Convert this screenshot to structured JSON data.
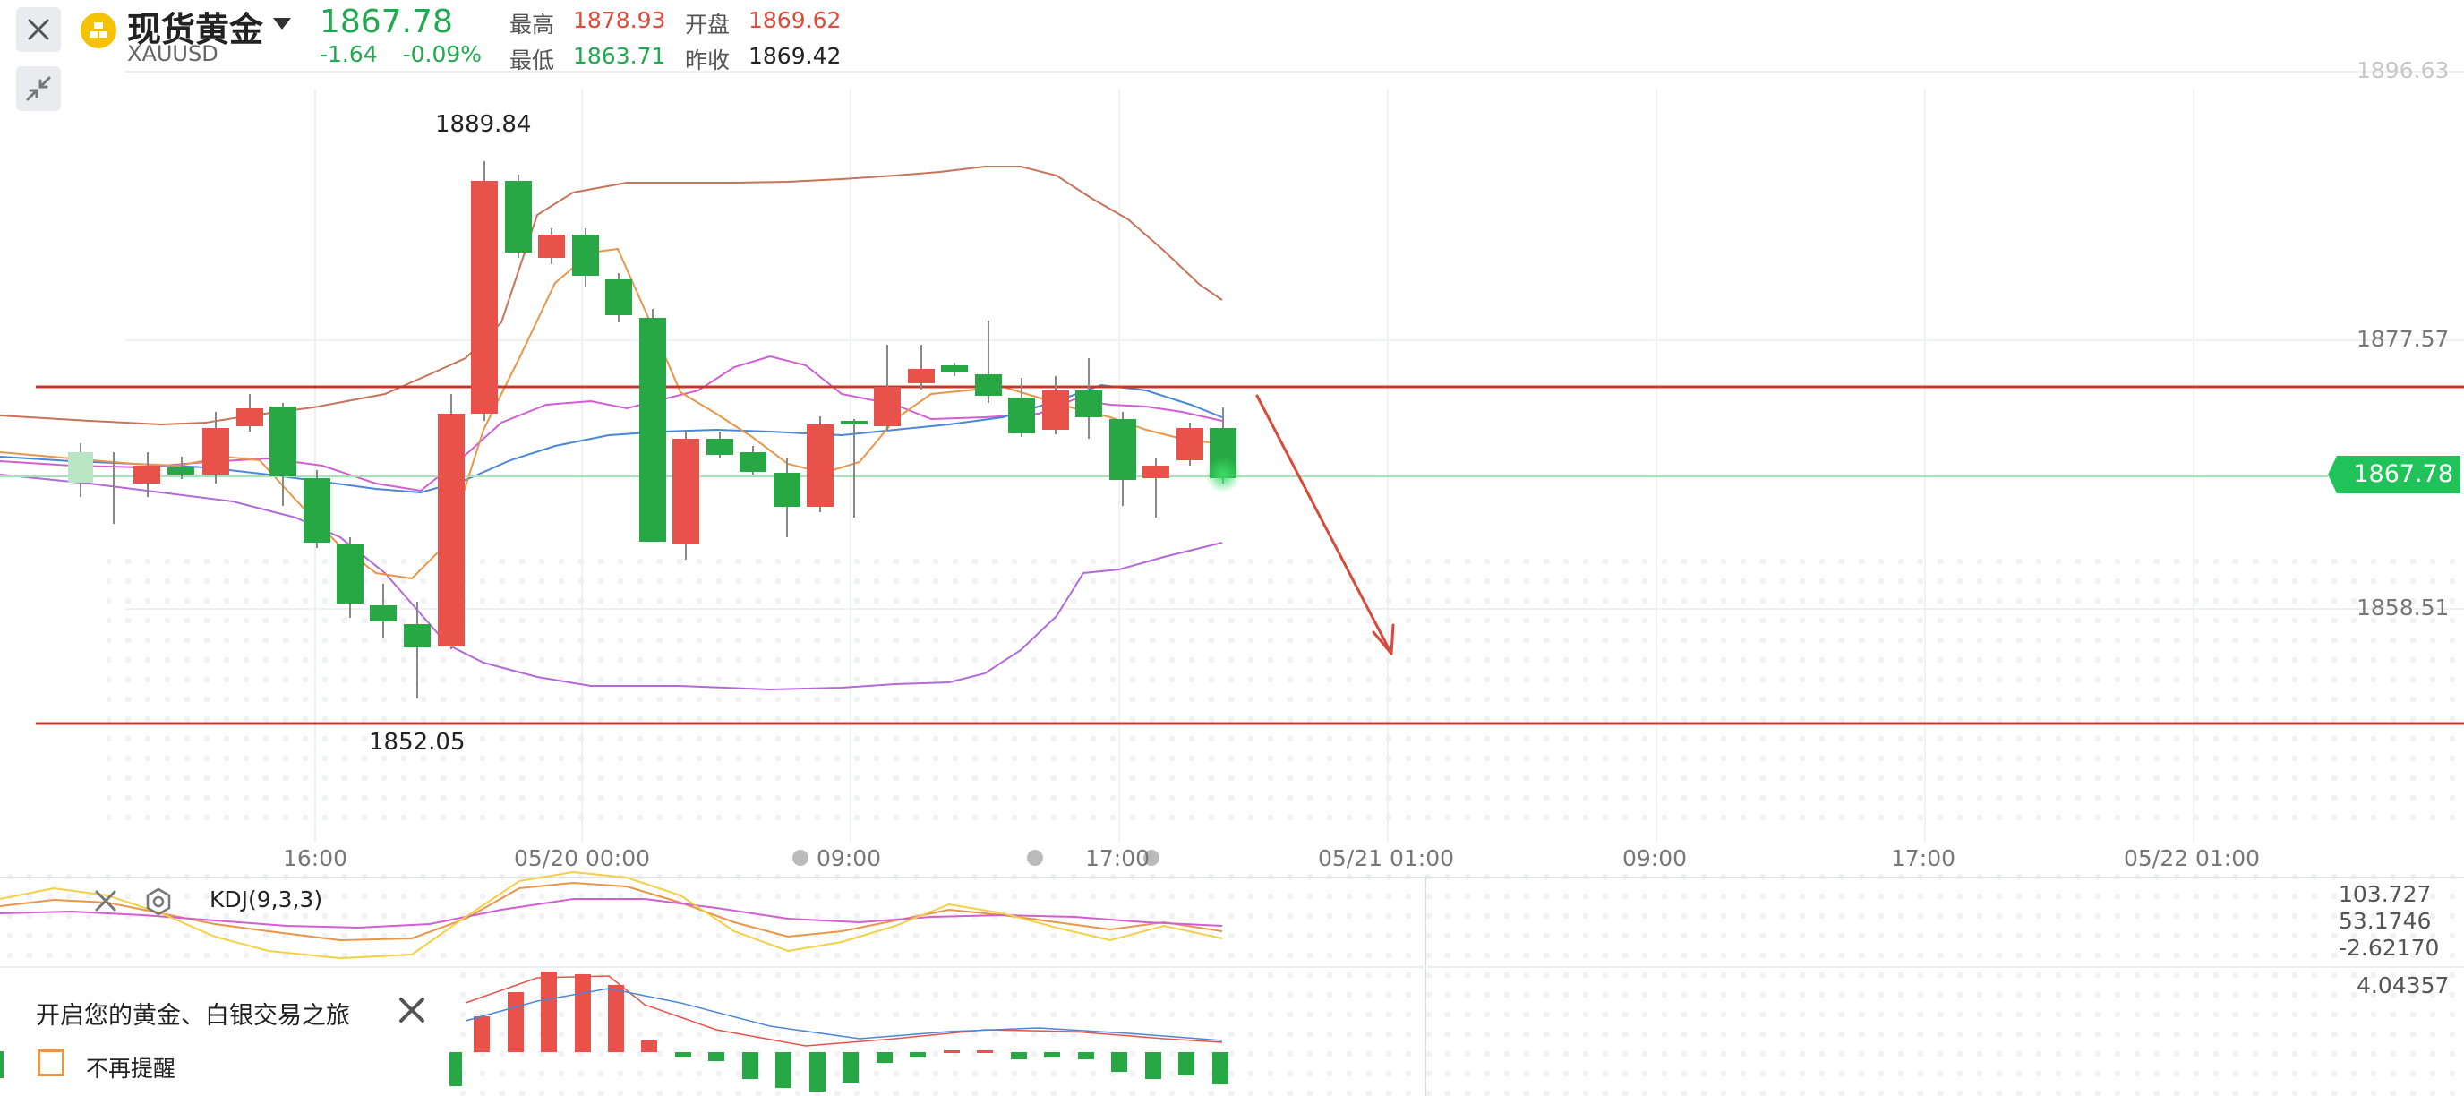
{
  "header": {
    "instrument_name": "现货黄金",
    "symbol": "XAUUSD",
    "last_price": "1867.78",
    "change": "-1.64",
    "change_pct": "-0.09%",
    "stats": {
      "high_label": "最高",
      "high_value": "1878.93",
      "open_label": "开盘",
      "open_value": "1869.62",
      "low_label": "最低",
      "low_value": "1863.71",
      "prev_close_label": "昨收",
      "prev_close_value": "1869.42"
    },
    "colors": {
      "up": "#e04a3c",
      "down": "#22a84f",
      "accent": "#f5c200"
    }
  },
  "chart": {
    "y_axis_labels": [
      "1896.63",
      "1877.57",
      "1858.51"
    ],
    "current_price_tag": "1867.78",
    "high_annotation": "1889.84",
    "low_annotation": "1852.05",
    "x_axis_labels": [
      "16:00",
      "05/20 00:00",
      "09:00",
      "17:00",
      "05/21 01:00",
      "09:00",
      "17:00",
      "05/22 01:00"
    ],
    "horizontal_lines": [
      "resistance",
      "support"
    ],
    "arrow": "down"
  },
  "indicator": {
    "name": "KDJ(9,3,3)",
    "values": [
      "103.727",
      "53.1746",
      "-2.62170"
    ],
    "macd_value": "4.04357"
  },
  "promo": {
    "text": "开启您的黄金、白银交易之旅",
    "checkbox_label": "不再提醒"
  }
}
